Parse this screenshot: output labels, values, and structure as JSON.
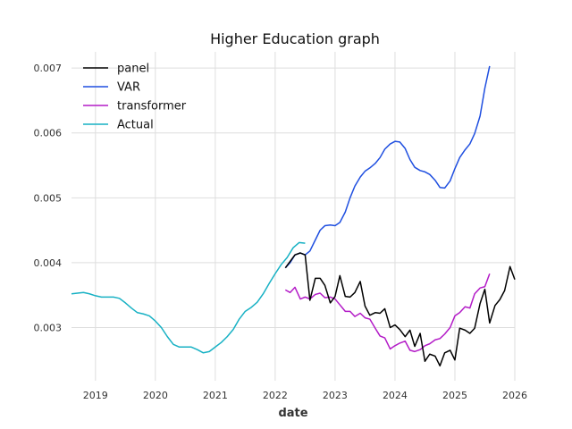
{
  "chart_data": {
    "type": "line",
    "title": "Higher Education graph",
    "xlabel": "date",
    "ylabel": "",
    "xlim": [
      2018.6,
      2026.0
    ],
    "ylim": [
      0.00218,
      0.00725
    ],
    "x_ticks": [
      {
        "value": 2019,
        "label": "2019"
      },
      {
        "value": 2020,
        "label": "2020"
      },
      {
        "value": 2021,
        "label": "2021"
      },
      {
        "value": 2022,
        "label": "2022"
      },
      {
        "value": 2023,
        "label": "2023"
      },
      {
        "value": 2024,
        "label": "2024"
      },
      {
        "value": 2025,
        "label": "2025"
      },
      {
        "value": 2026,
        "label": "2026"
      }
    ],
    "y_ticks": [
      {
        "value": 0.003,
        "label": "0.003"
      },
      {
        "value": 0.004,
        "label": "0.004"
      },
      {
        "value": 0.005,
        "label": "0.005"
      },
      {
        "value": 0.006,
        "label": "0.006"
      },
      {
        "value": 0.007,
        "label": "0.007"
      }
    ],
    "grid": true,
    "legend_position": "top-left",
    "series": [
      {
        "name": "panel",
        "color": "#000000",
        "x": [
          2022.17,
          2022.25,
          2022.33,
          2022.42,
          2022.5,
          2022.58,
          2022.67,
          2022.75,
          2022.83,
          2022.92,
          2023.0,
          2023.08,
          2023.17,
          2023.25,
          2023.33,
          2023.42,
          2023.5,
          2023.58,
          2023.67,
          2023.75,
          2023.83,
          2023.92,
          2024.0,
          2024.08,
          2024.17,
          2024.25,
          2024.33,
          2024.42,
          2024.5,
          2024.58,
          2024.67,
          2024.75,
          2024.83,
          2024.92,
          2025.0,
          2025.08,
          2025.17,
          2025.25,
          2025.33,
          2025.42,
          2025.5,
          2025.58,
          2025.67,
          2025.75,
          2025.83,
          2025.92,
          2026.0
        ],
        "y": [
          0.00392,
          0.00402,
          0.00412,
          0.00415,
          0.00412,
          0.00342,
          0.00376,
          0.00376,
          0.00365,
          0.00338,
          0.00348,
          0.0038,
          0.00348,
          0.00347,
          0.00354,
          0.00371,
          0.00333,
          0.00319,
          0.00323,
          0.00322,
          0.00329,
          0.003,
          0.00304,
          0.00297,
          0.00286,
          0.00296,
          0.00271,
          0.00291,
          0.00248,
          0.00259,
          0.00256,
          0.00241,
          0.00261,
          0.00265,
          0.0025,
          0.00299,
          0.00296,
          0.00291,
          0.00299,
          0.00337,
          0.00359,
          0.00307,
          0.00334,
          0.00343,
          0.00357,
          0.00394,
          0.00374
        ]
      },
      {
        "name": "VAR",
        "color": "#1f4fe0",
        "x": [
          2022.17,
          2022.25,
          2022.33,
          2022.42,
          2022.5,
          2022.58,
          2022.67,
          2022.75,
          2022.83,
          2022.92,
          2023.0,
          2023.08,
          2023.17,
          2023.25,
          2023.33,
          2023.42,
          2023.5,
          2023.58,
          2023.67,
          2023.75,
          2023.83,
          2023.92,
          2024.0,
          2024.08,
          2024.17,
          2024.25,
          2024.33,
          2024.42,
          2024.5,
          2024.58,
          2024.67,
          2024.75,
          2024.83,
          2024.92,
          2025.0,
          2025.08,
          2025.17,
          2025.25,
          2025.33,
          2025.42,
          2025.5,
          2025.58
        ],
        "y": [
          0.00392,
          0.004,
          0.00412,
          0.00415,
          0.00412,
          0.00418,
          0.00435,
          0.0045,
          0.00457,
          0.00458,
          0.00457,
          0.00462,
          0.00478,
          0.005,
          0.00518,
          0.00532,
          0.00541,
          0.00546,
          0.00553,
          0.00562,
          0.00575,
          0.00583,
          0.00587,
          0.00586,
          0.00576,
          0.00559,
          0.00547,
          0.00542,
          0.0054,
          0.00536,
          0.00527,
          0.00516,
          0.00515,
          0.00526,
          0.00545,
          0.00562,
          0.00574,
          0.00583,
          0.00599,
          0.00626,
          0.00669,
          0.00703
        ]
      },
      {
        "name": "transformer",
        "color": "#b31bc7",
        "x": [
          2022.17,
          2022.25,
          2022.33,
          2022.42,
          2022.5,
          2022.58,
          2022.67,
          2022.75,
          2022.83,
          2022.92,
          2023.0,
          2023.08,
          2023.17,
          2023.25,
          2023.33,
          2023.42,
          2023.5,
          2023.58,
          2023.67,
          2023.75,
          2023.83,
          2023.92,
          2024.0,
          2024.08,
          2024.17,
          2024.25,
          2024.33,
          2024.42,
          2024.5,
          2024.58,
          2024.67,
          2024.75,
          2024.83,
          2024.92,
          2025.0,
          2025.08,
          2025.17,
          2025.25,
          2025.33,
          2025.42,
          2025.5,
          2025.58
        ],
        "y": [
          0.00358,
          0.00354,
          0.00362,
          0.00344,
          0.00347,
          0.00344,
          0.00351,
          0.00353,
          0.00346,
          0.00347,
          0.00344,
          0.00335,
          0.00325,
          0.00325,
          0.00317,
          0.00322,
          0.00315,
          0.00313,
          0.00299,
          0.00287,
          0.00284,
          0.00267,
          0.00272,
          0.00276,
          0.00279,
          0.00265,
          0.00263,
          0.00266,
          0.00272,
          0.00275,
          0.00281,
          0.00283,
          0.0029,
          0.003,
          0.00318,
          0.00323,
          0.00332,
          0.0033,
          0.00352,
          0.00361,
          0.00363,
          0.00383
        ]
      },
      {
        "name": "Actual",
        "color": "#17b1c4",
        "x": [
          2018.6,
          2018.7,
          2018.8,
          2018.9,
          2019.0,
          2019.1,
          2019.2,
          2019.3,
          2019.4,
          2019.5,
          2019.6,
          2019.7,
          2019.8,
          2019.9,
          2020.0,
          2020.1,
          2020.2,
          2020.3,
          2020.4,
          2020.5,
          2020.6,
          2020.7,
          2020.8,
          2020.9,
          2021.0,
          2021.1,
          2021.2,
          2021.3,
          2021.4,
          2021.5,
          2021.6,
          2021.7,
          2021.8,
          2021.9,
          2022.0,
          2022.1,
          2022.2,
          2022.3,
          2022.4,
          2022.5
        ],
        "y": [
          0.00352,
          0.00353,
          0.00354,
          0.00352,
          0.00349,
          0.00347,
          0.00347,
          0.00347,
          0.00345,
          0.00338,
          0.0033,
          0.00323,
          0.00321,
          0.00318,
          0.0031,
          0.003,
          0.00286,
          0.00274,
          0.0027,
          0.0027,
          0.0027,
          0.00266,
          0.00261,
          0.00263,
          0.0027,
          0.00277,
          0.00286,
          0.00297,
          0.00313,
          0.00325,
          0.00331,
          0.00339,
          0.00352,
          0.00368,
          0.00383,
          0.00397,
          0.00408,
          0.00423,
          0.00431,
          0.0043
        ]
      }
    ]
  }
}
